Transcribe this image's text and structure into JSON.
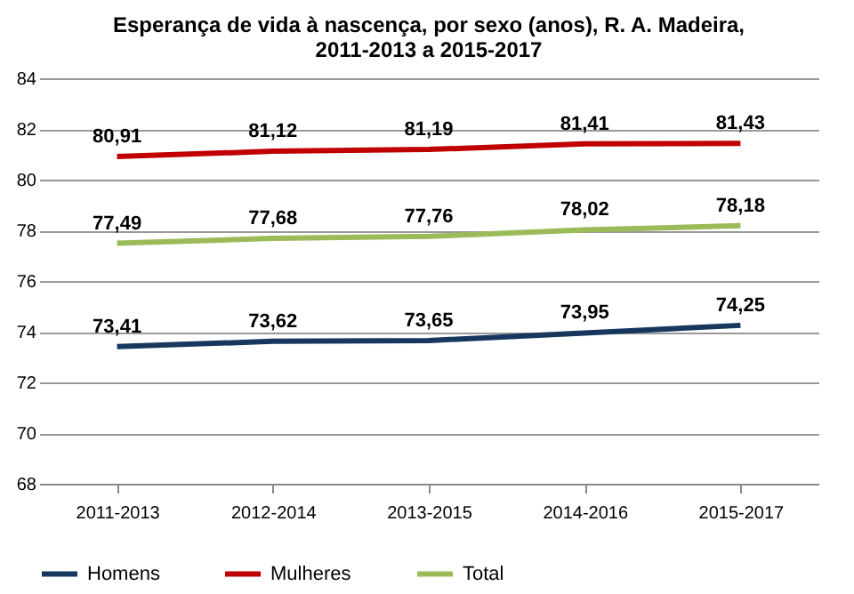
{
  "chart_data": {
    "type": "line",
    "title": "Esperança de vida  à nascença, por sexo (anos), R. A. Madeira,\n2011-2013 a 2015-2017",
    "categories": [
      "2011-2013",
      "2012-2014",
      "2013-2015",
      "2014-2016",
      "2015-2017"
    ],
    "series": [
      {
        "name": "Homens",
        "color": "#17375e",
        "values": [
          73.41,
          73.62,
          73.65,
          73.95,
          74.25
        ],
        "value_labels": [
          "73,41",
          "73,62",
          "73,65",
          "73,95",
          "74,25"
        ]
      },
      {
        "name": "Mulheres",
        "color": "#c00000",
        "values": [
          80.91,
          81.12,
          81.19,
          81.41,
          81.43
        ],
        "value_labels": [
          "80,91",
          "81,12",
          "81,19",
          "81,41",
          "81,43"
        ]
      },
      {
        "name": "Total",
        "color": "#9bbb59",
        "values": [
          77.49,
          77.68,
          77.76,
          78.02,
          78.18
        ],
        "value_labels": [
          "77,49",
          "77,68",
          "77,76",
          "78,02",
          "78,18"
        ]
      }
    ],
    "ylim": [
      68,
      84
    ],
    "yticks": [
      68,
      70,
      72,
      74,
      76,
      78,
      80,
      82,
      84
    ],
    "grid": "y",
    "legend": "bottom",
    "marker": "none",
    "line_style": "solid"
  }
}
